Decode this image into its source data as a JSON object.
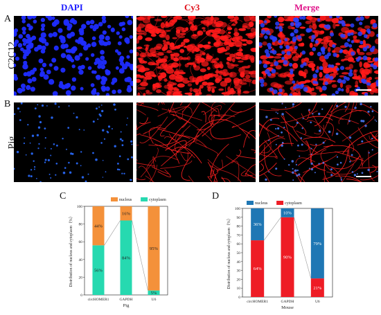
{
  "figure": {
    "column_titles": [
      {
        "text": "DAPI",
        "color": "#1a1aff"
      },
      {
        "text": "Cy3",
        "color": "#e0101a"
      },
      {
        "text": "Merge",
        "color": "#e0148a"
      }
    ],
    "row_labels": [
      "C2C12",
      "Pig"
    ],
    "panel_letters": [
      "A",
      "B",
      "C",
      "D"
    ],
    "scale_bar_color": "#ffffff"
  },
  "chart_data": [
    {
      "type": "bar",
      "stacked": true,
      "panel": "C",
      "categories": [
        "circHOMER1",
        "GAPDH",
        "U6"
      ],
      "series": [
        {
          "name": "nucleus",
          "color": "#f4913a",
          "values": [
            44,
            16,
            95
          ],
          "labels": [
            "44%",
            "16%",
            "95%"
          ]
        },
        {
          "name": "cytoplasm",
          "color": "#26d9b0",
          "values": [
            56,
            84,
            5
          ],
          "labels": [
            "56%",
            "84%",
            "5%"
          ]
        }
      ],
      "xlabel": "Pig",
      "ylabel": "Distribution of nucleus and cytoplasm（%）",
      "ylim": [
        0,
        100
      ],
      "yticks": [
        "0",
        "20",
        "40",
        "60",
        "80",
        "100"
      ],
      "legend": "top-right",
      "grid": false
    },
    {
      "type": "bar",
      "stacked": true,
      "panel": "D",
      "categories": [
        "circHOMER1",
        "GAPDH",
        "U6"
      ],
      "series": [
        {
          "name": "nucleus",
          "color": "#1f77b4",
          "values": [
            36,
            10,
            79
          ],
          "labels": [
            "36%",
            "10%",
            "79%"
          ]
        },
        {
          "name": "cytoplasm",
          "color": "#ee1c25",
          "values": [
            64,
            90,
            21
          ],
          "labels": [
            "64%",
            "90%",
            "21%"
          ]
        }
      ],
      "xlabel": "Mouse",
      "ylabel": "Distribution of nucleus and cytoplasm（%）",
      "ylim": [
        0,
        100
      ],
      "yticks": [
        "0",
        "10",
        "20",
        "30",
        "40",
        "50",
        "60",
        "70",
        "80",
        "90",
        "100"
      ],
      "legend": "top",
      "grid": false
    }
  ]
}
